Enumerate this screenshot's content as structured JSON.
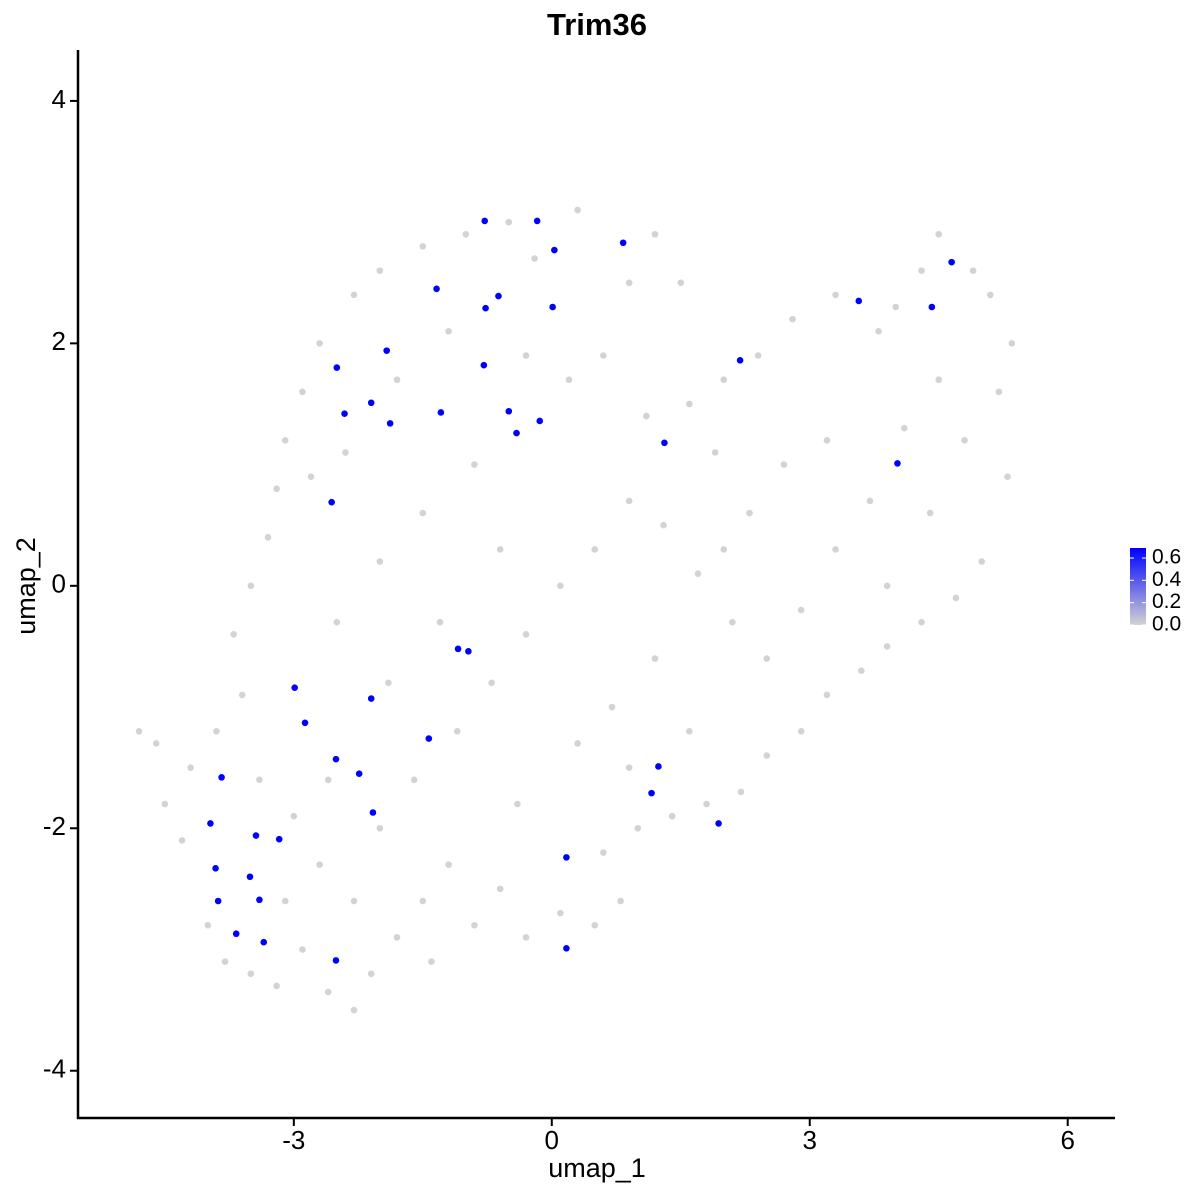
{
  "chart_data": {
    "type": "scatter",
    "title": "Trim36",
    "x_label": "umap_1",
    "y_label": "umap_2",
    "xlim": [
      -5.51,
      6.55
    ],
    "ylim": [
      -4.39,
      4.42
    ],
    "xticks": [
      -3,
      0,
      3,
      6
    ],
    "yticks": [
      -4,
      -2,
      0,
      2,
      4
    ],
    "colorbar": {
      "lim": [
        0,
        0.69
      ],
      "ticks": [
        {
          "value": 0,
          "label": "0.0"
        },
        {
          "value": 0.2,
          "label": "0.2"
        },
        {
          "value": 0.4,
          "label": "0.4"
        },
        {
          "value": 0.6,
          "label": "0.6"
        }
      ],
      "low": "#d3d3d3",
      "high": "#0000ff"
    },
    "x": [
      -4.8,
      -4.6,
      -4.5,
      -4.2,
      -4.3,
      -4.0,
      -3.8,
      -3.5,
      -3.2,
      -2.9,
      -2.6,
      -2.3,
      -2.1,
      -1.8,
      -1.4,
      -1.5,
      -1.2,
      -0.9,
      -0.6,
      -0.3,
      0.1,
      0.5,
      0.8,
      0.6,
      1.0,
      1.4,
      1.8,
      2.2,
      2.5,
      2.9,
      3.2,
      3.6,
      3.9,
      4.3,
      4.7,
      5.0,
      5.3,
      5.2,
      5.35,
      5.1,
      4.9,
      4.5,
      4.3,
      4.0,
      3.8,
      3.3,
      2.8,
      2.4,
      2.0,
      1.6,
      1.5,
      1.2,
      0.9,
      0.3,
      -0.2,
      -0.5,
      -1.0,
      -1.5,
      -2.0,
      -2.3,
      -2.7,
      -2.9,
      -3.1,
      -3.2,
      -3.3,
      -3.5,
      -3.7,
      -3.6,
      -3.9,
      -3.4,
      -3.0,
      -2.7,
      -2.3,
      -2.0,
      -1.6,
      -1.1,
      -0.7,
      -0.3,
      0.1,
      0.5,
      0.9,
      1.3,
      1.7,
      2.1,
      2.5,
      2.9,
      3.3,
      3.7,
      4.1,
      4.5,
      4.8,
      4.4,
      3.9,
      3.2,
      2.7,
      2.3,
      1.9,
      1.1,
      0.6,
      0.2,
      -0.3,
      -0.9,
      -1.5,
      -2.0,
      -2.5,
      -2.8,
      -2.4,
      -1.8,
      -1.2,
      -0.6,
      -1.3,
      -1.9,
      -2.6,
      -3.1,
      0.3,
      -0.4,
      0.7,
      1.2,
      0.9,
      1.6,
      2.0,
      -0.78,
      -0.17,
      0.03,
      0.83,
      -1.34,
      -0.62,
      -0.77,
      0.01,
      -1.92,
      -2.5,
      -0.79,
      -2.1,
      -2.41,
      -1.88,
      -1.29,
      -0.5,
      -0.14,
      -0.41,
      1.31,
      2.19,
      3.57,
      4.65,
      4.42,
      4.02,
      -2.56,
      -1.09,
      -0.97,
      -2.99,
      -2.87,
      -2.1,
      -1.43,
      -2.51,
      -3.84,
      -2.24,
      1.24,
      1.16,
      -2.08,
      1.94,
      -3.97,
      -3.44,
      -3.17,
      0.17,
      -3.91,
      -3.51,
      -3.88,
      -3.4,
      -3.67,
      -3.35,
      0.17,
      -2.51
    ],
    "y": [
      -1.2,
      -1.3,
      -1.8,
      -1.5,
      -2.1,
      -2.8,
      -3.1,
      -3.2,
      -3.3,
      -3.0,
      -3.35,
      -3.5,
      -3.2,
      -2.9,
      -3.1,
      -2.6,
      -2.3,
      -2.8,
      -2.5,
      -2.9,
      -2.7,
      -2.8,
      -2.6,
      -2.2,
      -2.0,
      -1.9,
      -1.8,
      -1.7,
      -1.4,
      -1.2,
      -0.9,
      -0.7,
      -0.5,
      -0.3,
      -0.1,
      0.2,
      0.9,
      1.6,
      2.0,
      2.4,
      2.6,
      2.9,
      2.6,
      2.3,
      2.1,
      2.4,
      2.2,
      1.9,
      1.7,
      1.5,
      2.5,
      2.9,
      2.5,
      3.1,
      2.7,
      3.0,
      2.9,
      2.8,
      2.6,
      2.4,
      2.0,
      1.6,
      1.2,
      0.8,
      0.4,
      0.0,
      -0.4,
      -0.9,
      -1.2,
      -1.6,
      -1.9,
      -2.3,
      -2.6,
      -2.0,
      -1.6,
      -1.2,
      -0.8,
      -0.4,
      0.0,
      0.3,
      0.7,
      0.5,
      0.1,
      -0.3,
      -0.6,
      -0.2,
      0.3,
      0.7,
      1.3,
      1.7,
      1.2,
      0.6,
      0.0,
      1.2,
      1.0,
      0.6,
      1.1,
      1.4,
      1.9,
      1.7,
      1.9,
      1.0,
      0.6,
      0.2,
      -0.3,
      0.9,
      1.1,
      1.7,
      2.1,
      0.3,
      -0.3,
      -0.8,
      -1.6,
      -2.6,
      -1.3,
      -1.8,
      -1.0,
      -0.6,
      -1.5,
      -1.2,
      0.3,
      3.01,
      3.01,
      2.77,
      2.83,
      2.45,
      2.39,
      2.29,
      2.3,
      1.94,
      1.8,
      1.82,
      1.51,
      1.42,
      1.34,
      1.43,
      1.44,
      1.36,
      1.26,
      1.18,
      1.86,
      2.35,
      2.67,
      2.3,
      1.01,
      0.69,
      -0.52,
      -0.54,
      -0.84,
      -1.13,
      -0.93,
      -1.26,
      -1.43,
      -1.58,
      -1.55,
      -1.49,
      -1.71,
      -1.87,
      -1.96,
      -1.96,
      -2.06,
      -2.09,
      -2.24,
      -2.33,
      -2.4,
      -2.6,
      -2.59,
      -2.87,
      -2.94,
      -2.99,
      -3.09
    ],
    "values": [
      0,
      0,
      0,
      0,
      0,
      0,
      0,
      0,
      0,
      0,
      0,
      0,
      0,
      0,
      0,
      0,
      0,
      0,
      0,
      0,
      0,
      0,
      0,
      0,
      0,
      0,
      0,
      0,
      0,
      0,
      0,
      0,
      0,
      0,
      0,
      0,
      0,
      0,
      0,
      0,
      0,
      0,
      0,
      0,
      0,
      0,
      0,
      0,
      0,
      0,
      0,
      0,
      0,
      0,
      0,
      0,
      0,
      0,
      0,
      0,
      0,
      0,
      0,
      0,
      0,
      0,
      0,
      0,
      0,
      0,
      0,
      0,
      0,
      0,
      0,
      0,
      0,
      0,
      0,
      0,
      0,
      0,
      0,
      0,
      0,
      0,
      0,
      0,
      0,
      0,
      0,
      0,
      0,
      0,
      0,
      0,
      0,
      0,
      0,
      0,
      0,
      0,
      0,
      0,
      0,
      0,
      0,
      0,
      0,
      0,
      0,
      0,
      0,
      0,
      0,
      0,
      0,
      0,
      0,
      0,
      0,
      0.69,
      0.69,
      0.69,
      0.69,
      0.69,
      0.69,
      0.69,
      0.69,
      0.69,
      0.69,
      0.69,
      0.69,
      0.69,
      0.69,
      0.69,
      0.69,
      0.69,
      0.69,
      0.69,
      0.69,
      0.69,
      0.69,
      0.69,
      0.69,
      0.69,
      0.69,
      0.69,
      0.69,
      0.69,
      0.69,
      0.69,
      0.69,
      0.69,
      0.69,
      0.69,
      0.69,
      0.69,
      0.69,
      0.69,
      0.69,
      0.69,
      0.69,
      0.69,
      0.69,
      0.69,
      0.69,
      0.69,
      0.69,
      0.69,
      0.69
    ]
  }
}
